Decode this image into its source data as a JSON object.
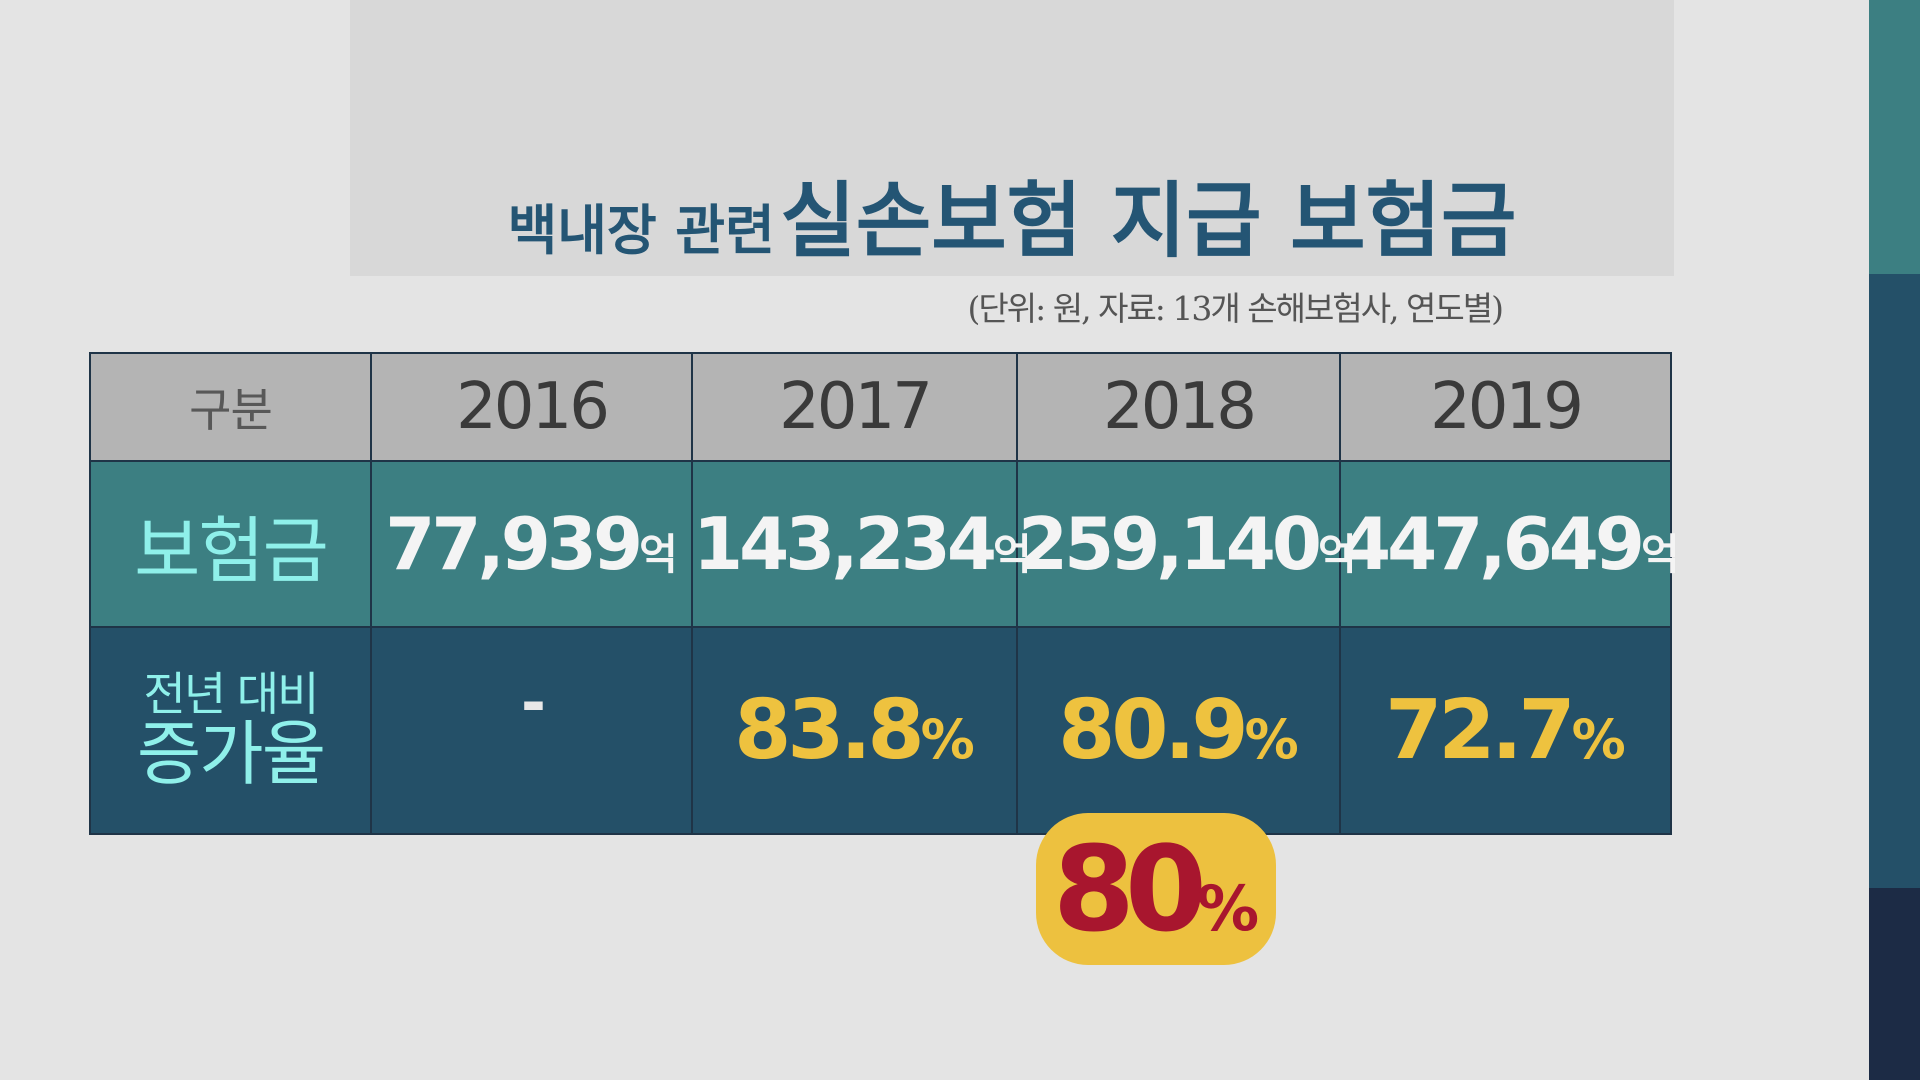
{
  "title": {
    "part1": "백내장 관련",
    "part2": "실손보험 지급 보험금"
  },
  "unit_note": "(단위: 원, 자료: 13개 손해보험사, 연도별)",
  "colors": {
    "header": "#b4b4b4",
    "row_amount": "#3c7f82",
    "row_rate": "#245068",
    "accent": "#eec23f",
    "label": "#8ff0ea",
    "title": "#245574",
    "badge_text": "#a8162e"
  },
  "side_bar": {
    "segments": [
      "#3c7f82",
      "#245068",
      "#1c2b45"
    ]
  },
  "chart_data": {
    "type": "table",
    "header": {
      "label": "구분",
      "years": [
        "2016",
        "2017",
        "2018",
        "2019"
      ]
    },
    "rows": [
      {
        "label": "보험금",
        "values": [
          "77,939",
          "143,234",
          "259,140",
          "447,649"
        ],
        "suffix": "억"
      },
      {
        "label_line1": "전년 대비",
        "label_line2": "증가율",
        "values": [
          "-",
          "83.8",
          "80.9",
          "72.7"
        ],
        "suffix": "%"
      }
    ]
  },
  "badge": {
    "value": "80",
    "suffix": "%"
  }
}
